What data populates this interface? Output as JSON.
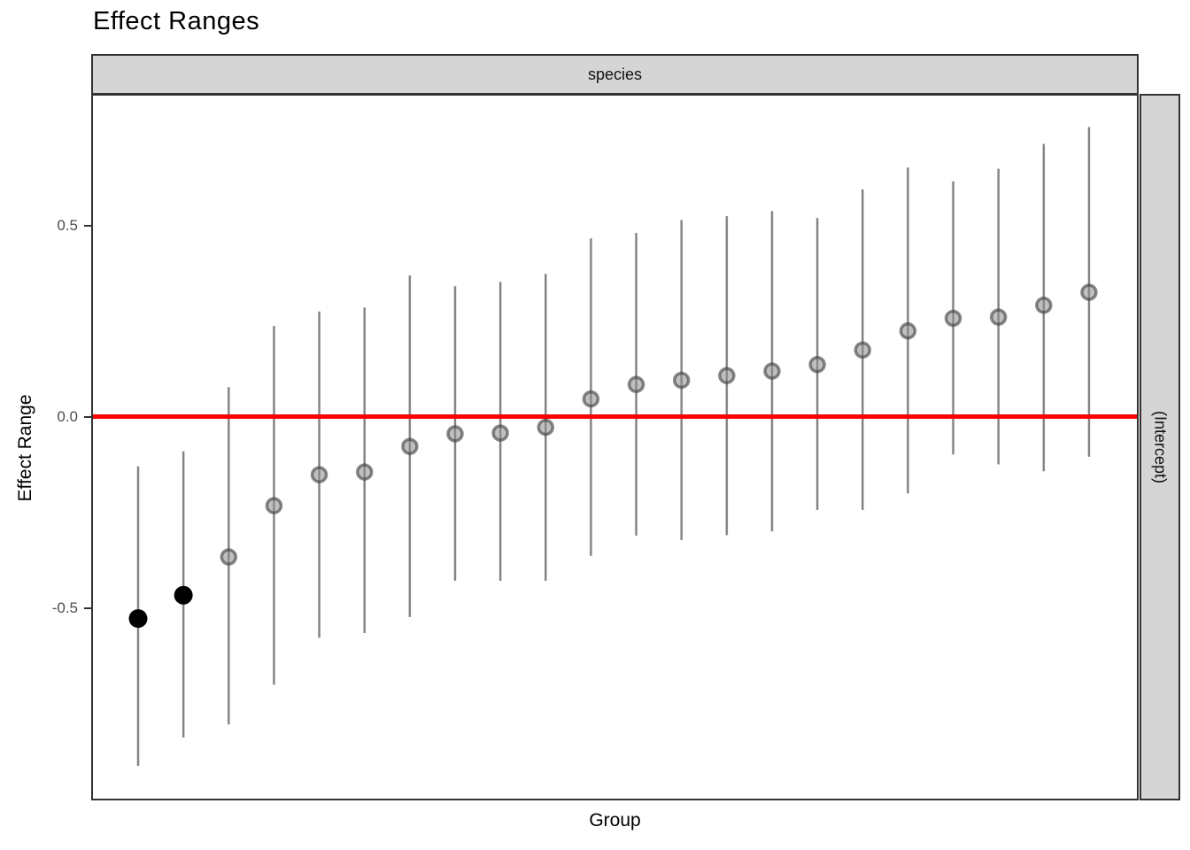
{
  "chart_data": {
    "type": "scatter",
    "subtype": "pointrange",
    "title": "Effect Ranges",
    "facet_label": "species",
    "facet_value": "(Intercept)",
    "xlabel": "Group",
    "ylabel": "Effect Range",
    "ylim": [
      -1.0,
      0.84
    ],
    "grid": false,
    "legend": "none",
    "yticks": [
      {
        "label": "0.5",
        "value": 0.5
      },
      {
        "label": "0.0",
        "value": 0.0
      },
      {
        "label": "-0.5",
        "value": -0.5
      }
    ],
    "reference_line": {
      "value": 0.0
    },
    "n_groups": 22,
    "points": [
      {
        "group": 1,
        "estimate": -0.528,
        "lo": -0.913,
        "hi": -0.13,
        "significant": true
      },
      {
        "group": 2,
        "estimate": -0.467,
        "lo": -0.839,
        "hi": -0.091,
        "significant": true
      },
      {
        "group": 3,
        "estimate": -0.367,
        "lo": -0.805,
        "hi": 0.077,
        "significant": false
      },
      {
        "group": 4,
        "estimate": -0.233,
        "lo": -0.701,
        "hi": 0.237,
        "significant": false
      },
      {
        "group": 5,
        "estimate": -0.152,
        "lo": -0.578,
        "hi": 0.275,
        "significant": false
      },
      {
        "group": 6,
        "estimate": -0.145,
        "lo": -0.566,
        "hi": 0.285,
        "significant": false
      },
      {
        "group": 7,
        "estimate": -0.078,
        "lo": -0.524,
        "hi": 0.369,
        "significant": false
      },
      {
        "group": 8,
        "estimate": -0.045,
        "lo": -0.429,
        "hi": 0.341,
        "significant": false
      },
      {
        "group": 9,
        "estimate": -0.043,
        "lo": -0.429,
        "hi": 0.352,
        "significant": false
      },
      {
        "group": 10,
        "estimate": -0.028,
        "lo": -0.429,
        "hi": 0.373,
        "significant": false
      },
      {
        "group": 11,
        "estimate": 0.046,
        "lo": -0.364,
        "hi": 0.466,
        "significant": false
      },
      {
        "group": 12,
        "estimate": 0.084,
        "lo": -0.311,
        "hi": 0.48,
        "significant": false
      },
      {
        "group": 13,
        "estimate": 0.095,
        "lo": -0.323,
        "hi": 0.514,
        "significant": false
      },
      {
        "group": 14,
        "estimate": 0.107,
        "lo": -0.31,
        "hi": 0.524,
        "significant": false
      },
      {
        "group": 15,
        "estimate": 0.119,
        "lo": -0.3,
        "hi": 0.537,
        "significant": false
      },
      {
        "group": 16,
        "estimate": 0.136,
        "lo": -0.244,
        "hi": 0.519,
        "significant": false
      },
      {
        "group": 17,
        "estimate": 0.174,
        "lo": -0.244,
        "hi": 0.594,
        "significant": false
      },
      {
        "group": 18,
        "estimate": 0.224,
        "lo": -0.201,
        "hi": 0.651,
        "significant": false
      },
      {
        "group": 19,
        "estimate": 0.257,
        "lo": -0.099,
        "hi": 0.615,
        "significant": false
      },
      {
        "group": 20,
        "estimate": 0.26,
        "lo": -0.125,
        "hi": 0.648,
        "significant": false
      },
      {
        "group": 21,
        "estimate": 0.291,
        "lo": -0.143,
        "hi": 0.713,
        "significant": false
      },
      {
        "group": 22,
        "estimate": 0.325,
        "lo": -0.105,
        "hi": 0.757,
        "significant": false
      }
    ],
    "colors": {
      "reference_line": "#FF0000",
      "error_bar": "#858585",
      "point_fill_ns": "#8C8C8C",
      "point_stroke_ns": "#3C3C3C",
      "point_significant": "#000000",
      "strip_fill": "#D5D5D5",
      "strip_border": "#333333",
      "panel_border": "#333333",
      "tick_text": "#4D4D4D"
    }
  }
}
